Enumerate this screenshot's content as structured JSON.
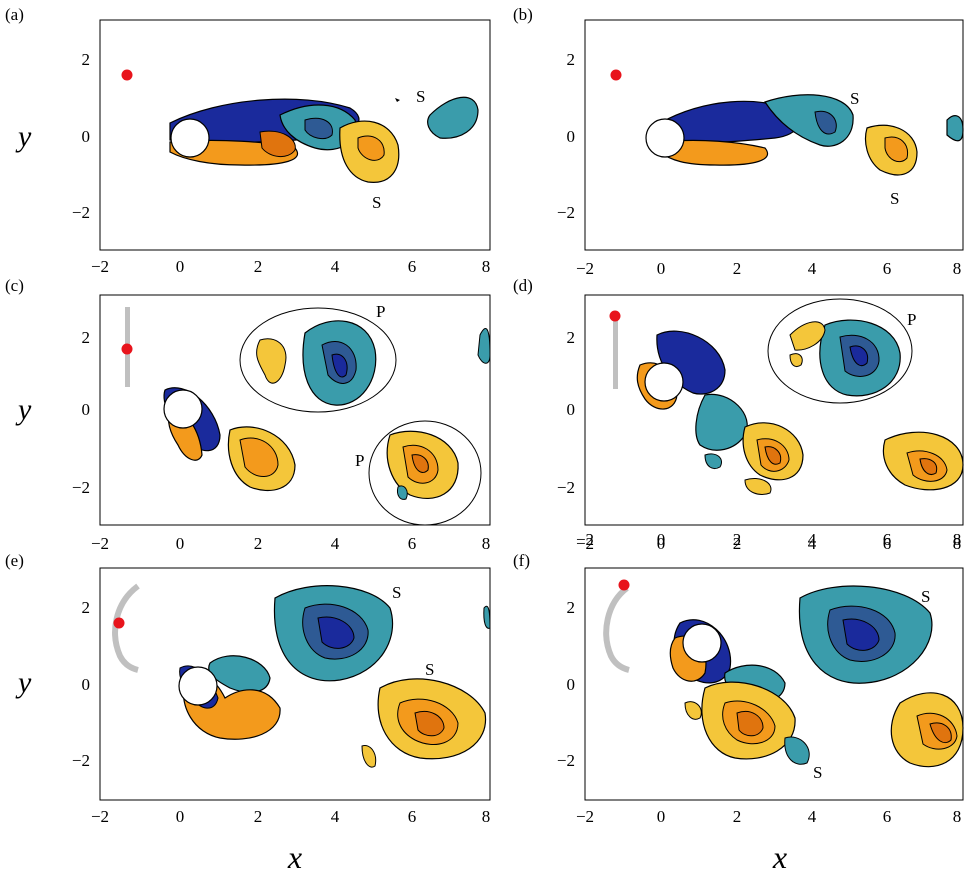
{
  "figure": {
    "x_ticks": [
      "−2",
      "0",
      "2",
      "4",
      "6",
      "8"
    ],
    "y_ticks": [
      "2",
      "0",
      "−2"
    ],
    "x_label": "x",
    "y_label": "y",
    "colors": {
      "neg_dark": "#1a2a9c",
      "neg_mid": "#2e5a94",
      "neg_light": "#3a9cab",
      "pos_dark": "#e0740e",
      "pos_mid": "#f39a1c",
      "pos_light": "#f4c63a",
      "marker": "#e8141c",
      "trajectory": "#c0c0c0"
    },
    "panels": [
      {
        "id": "a",
        "label": "(a)",
        "annotations": [
          "S",
          "S"
        ],
        "marker": [
          -1.45,
          1.6
        ],
        "path": "none",
        "show_xticks": false,
        "show_ylabel": true
      },
      {
        "id": "b",
        "label": "(b)",
        "annotations": [
          "S",
          "S"
        ],
        "marker": [
          -1.3,
          1.6
        ],
        "path": "none",
        "show_xticks": true,
        "show_ylabel": false
      },
      {
        "id": "c",
        "label": "(c)",
        "annotations": [
          "P",
          "P"
        ],
        "marker": [
          -1.45,
          1.55
        ],
        "path": "vertical",
        "show_xticks": true,
        "show_ylabel": true
      },
      {
        "id": "d",
        "label": "(d)",
        "annotations": [
          "P"
        ],
        "marker": [
          -1.3,
          2.5
        ],
        "path": "vertical",
        "show_xticks": true,
        "show_ylabel": false
      },
      {
        "id": "e",
        "label": "(e)",
        "annotations": [
          "S",
          "S"
        ],
        "marker": [
          -1.6,
          1.55
        ],
        "path": "arc",
        "show_xticks": true,
        "show_ylabel": true
      },
      {
        "id": "f",
        "label": "(f)",
        "annotations": [
          "S",
          "S"
        ],
        "marker": [
          -1.15,
          2.6
        ],
        "path": "arc",
        "show_xticks": true,
        "show_ylabel": false
      }
    ]
  }
}
